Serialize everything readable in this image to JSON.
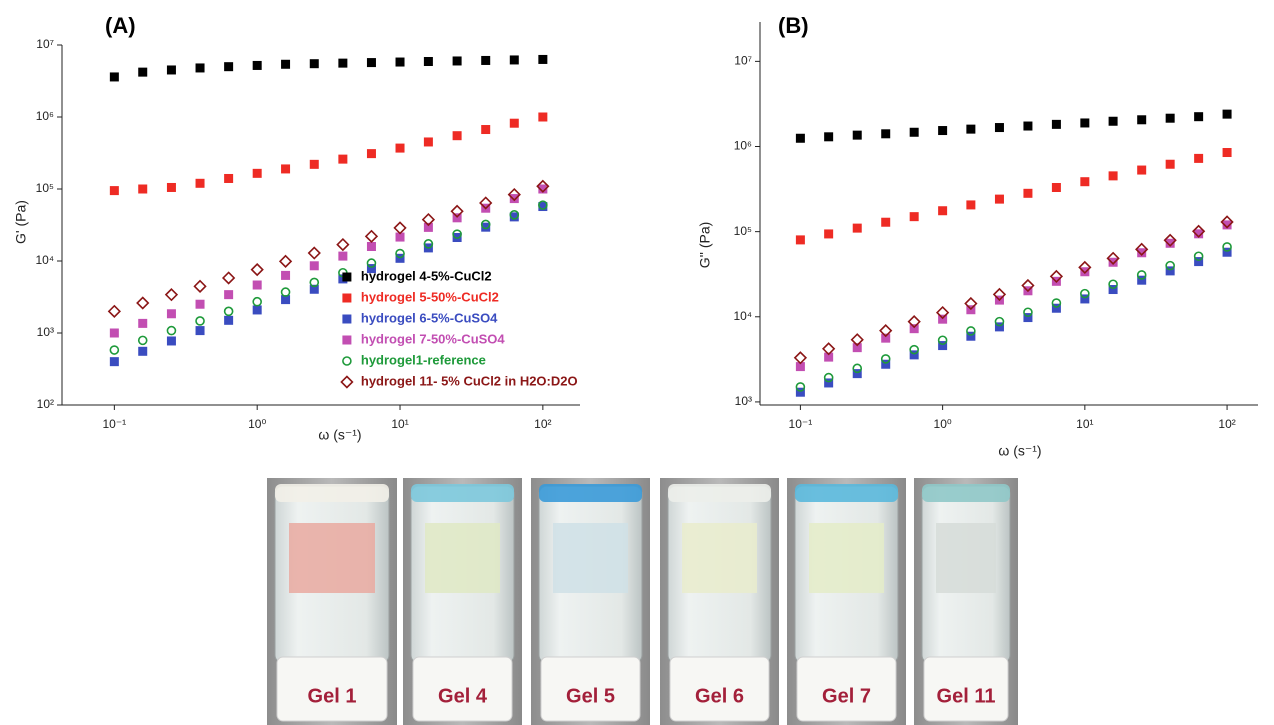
{
  "chart_data": [
    {
      "type": "scatter",
      "title": "(A)",
      "xlabel": "ω (s⁻¹)",
      "ylabel": "G' (Pa)",
      "log_x": true,
      "log_y": true,
      "legend": "lower right",
      "x": [
        0.1,
        0.158,
        0.251,
        0.398,
        0.631,
        1,
        1.58,
        2.51,
        3.98,
        6.31,
        10,
        15.8,
        25.1,
        39.8,
        63.1,
        100
      ],
      "xlim": [
        0.043,
        182
      ],
      "ylim": [
        100,
        10000000
      ],
      "xticks": [
        {
          "value": 0.1,
          "label": "10⁻¹"
        },
        {
          "value": 1,
          "label": "10⁰"
        },
        {
          "value": 10,
          "label": "10¹"
        },
        {
          "value": 100,
          "label": "10²"
        }
      ],
      "yticks": [
        {
          "value": 100,
          "label": "10²"
        },
        {
          "value": 1000,
          "label": "10³"
        },
        {
          "value": 10000,
          "label": "10⁴"
        },
        {
          "value": 100000,
          "label": "10⁵"
        },
        {
          "value": 1000000,
          "label": "10⁶"
        },
        {
          "value": 10000000,
          "label": "10⁷"
        }
      ],
      "series": [
        {
          "name": "hydrogel 4-5%-CuCl2",
          "color": "#000000",
          "marker": "square",
          "values": [
            3600000,
            4200000,
            4500000,
            4800000,
            5000000,
            5200000,
            5400000,
            5500000,
            5600000,
            5700000,
            5800000,
            5900000,
            6000000,
            6100000,
            6200000,
            6300000
          ]
        },
        {
          "name": "hydrogel 5-50%-CuCl2",
          "color": "#ee2b24",
          "marker": "square",
          "values": [
            95000,
            100000,
            105000,
            120000,
            140000,
            165000,
            190000,
            220000,
            260000,
            310000,
            370000,
            450000,
            550000,
            670000,
            820000,
            1000000
          ]
        },
        {
          "name": "hydrogel 6-5%-CuSO4",
          "color": "#3a4cc0",
          "marker": "square",
          "values": [
            400,
            557,
            775,
            1080,
            1500,
            2090,
            2910,
            4050,
            5640,
            7850,
            10900,
            15200,
            21200,
            29500,
            41000,
            57100
          ]
        },
        {
          "name": "hydrogel 7-50%-CuSO4",
          "color": "#c24eb2",
          "marker": "square",
          "values": [
            1000,
            1360,
            1850,
            2510,
            3410,
            4640,
            6310,
            8580,
            11700,
            15900,
            21500,
            29300,
            39800,
            54100,
            73600,
            100000
          ]
        },
        {
          "name": "hydrogel1-reference",
          "color": "#1e9a3a",
          "marker": "circle",
          "values": [
            580,
            790,
            1080,
            1470,
            2000,
            2720,
            3700,
            5040,
            6870,
            9350,
            12700,
            17300,
            23600,
            32200,
            43800,
            59700
          ]
        },
        {
          "name": "hydrogel 11- 5% CuCl2 in H2O:D2O",
          "color": "#8b1616",
          "marker": "diamond",
          "values": [
            2000,
            2610,
            3410,
            4450,
            5810,
            7590,
            9900,
            12900,
            16900,
            22000,
            28800,
            37600,
            49000,
            64000,
            83600,
            109000
          ]
        }
      ]
    },
    {
      "type": "scatter",
      "title": "(B)",
      "xlabel": "ω (s⁻¹)",
      "ylabel": "G'' (Pa)",
      "log_x": true,
      "log_y": true,
      "x": [
        0.1,
        0.158,
        0.251,
        0.398,
        0.631,
        1,
        1.58,
        2.51,
        3.98,
        6.31,
        10,
        15.8,
        25.1,
        39.8,
        63.1,
        100
      ],
      "xlim": [
        0.052,
        165
      ],
      "ylim": [
        920,
        29000000
      ],
      "xticks": [
        {
          "value": 0.1,
          "label": "10⁻¹"
        },
        {
          "value": 1,
          "label": "10⁰"
        },
        {
          "value": 10,
          "label": "10¹"
        },
        {
          "value": 100,
          "label": "10²"
        }
      ],
      "yticks": [
        {
          "value": 1000,
          "label": "10³"
        },
        {
          "value": 10000,
          "label": "10⁴"
        },
        {
          "value": 100000,
          "label": "10⁵"
        },
        {
          "value": 1000000,
          "label": "10⁶"
        },
        {
          "value": 10000000,
          "label": "10⁷"
        }
      ],
      "series": [
        {
          "color": "#000000",
          "marker": "square",
          "values": [
            1250000,
            1300000,
            1360000,
            1410000,
            1470000,
            1540000,
            1600000,
            1670000,
            1740000,
            1820000,
            1890000,
            1980000,
            2060000,
            2150000,
            2240000,
            2400000
          ]
        },
        {
          "color": "#ee2b24",
          "marker": "square",
          "values": [
            80000,
            94000,
            110000,
            129000,
            150000,
            176000,
            206000,
            241000,
            282000,
            330000,
            386000,
            452000,
            529000,
            619000,
            725000,
            850000
          ]
        },
        {
          "color": "#3a4cc0",
          "marker": "square",
          "values": [
            1300,
            1670,
            2150,
            2770,
            3570,
            4590,
            5910,
            7610,
            9790,
            12600,
            16200,
            20900,
            26900,
            34600,
            44500,
            57300
          ]
        },
        {
          "color": "#c24eb2",
          "marker": "square",
          "values": [
            2600,
            3360,
            4340,
            5610,
            7250,
            9370,
            12100,
            15700,
            20200,
            26100,
            33800,
            43700,
            56500,
            73000,
            94300,
            120000
          ]
        },
        {
          "color": "#1e9a3a",
          "marker": "circle",
          "values": [
            1500,
            1930,
            2480,
            3200,
            4110,
            5300,
            6810,
            8770,
            11300,
            14500,
            18700,
            24100,
            31000,
            39900,
            51400,
            66100
          ]
        },
        {
          "color": "#8b1616",
          "marker": "diamond",
          "values": [
            3300,
            4210,
            5380,
            6870,
            8770,
            11200,
            14300,
            18300,
            23300,
            29800,
            38000,
            48600,
            62000,
            79200,
            101000,
            130000
          ]
        }
      ]
    }
  ],
  "photos": [
    {
      "label": "Gel 1"
    },
    {
      "label": "Gel 4"
    },
    {
      "label": "Gel 5"
    },
    {
      "label": "Gel 6"
    },
    {
      "label": "Gel 7"
    },
    {
      "label": "Gel 11"
    }
  ]
}
